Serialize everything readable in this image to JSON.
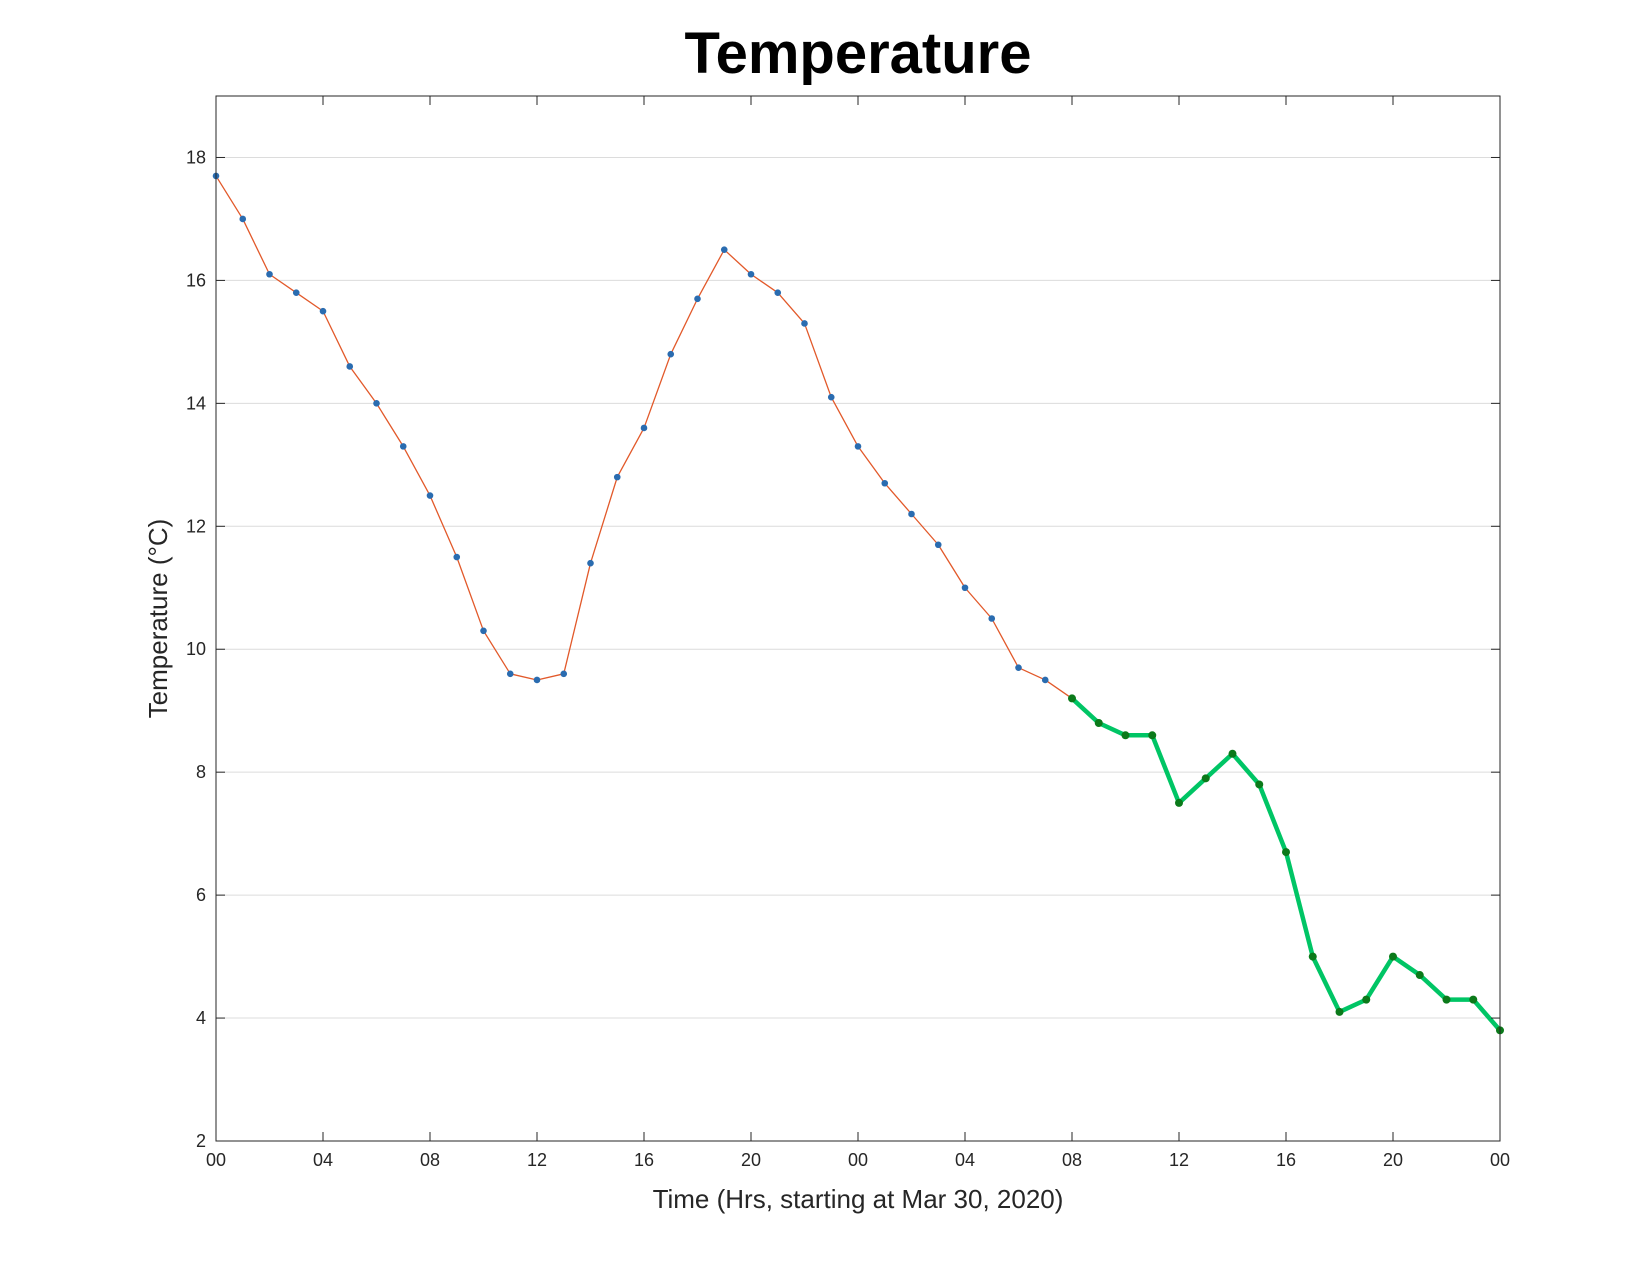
{
  "chart_data": {
    "type": "line",
    "title": "Temperature",
    "xlabel": "Time (Hrs, starting at Mar 30, 2020)",
    "ylabel": "Temperature (°C)",
    "ylim": [
      2,
      19
    ],
    "xlim": [
      0,
      48
    ],
    "grid": "horizontal",
    "x_tick_values": [
      0,
      4,
      8,
      12,
      16,
      20,
      24,
      28,
      32,
      36,
      40,
      44,
      48
    ],
    "x_tick_labels": [
      "00",
      "04",
      "08",
      "12",
      "16",
      "20",
      "00",
      "04",
      "08",
      "12",
      "16",
      "20",
      "00"
    ],
    "y_ticks": [
      2,
      4,
      6,
      8,
      10,
      12,
      14,
      16,
      18
    ],
    "series": [
      {
        "role": "observed",
        "line_color": "#e2592a",
        "marker_color": "#2a6cb0",
        "x": [
          0,
          1,
          2,
          3,
          4,
          5,
          6,
          7,
          8,
          9,
          10,
          11,
          12,
          13,
          14,
          15,
          16,
          17,
          18,
          19,
          20,
          21,
          22,
          23,
          24,
          25,
          26,
          27,
          28,
          29,
          30,
          31,
          32
        ],
        "values": [
          17.7,
          17.0,
          16.1,
          15.8,
          15.5,
          14.6,
          14.0,
          13.3,
          12.5,
          11.5,
          10.3,
          9.6,
          9.5,
          9.6,
          11.4,
          12.8,
          13.6,
          14.8,
          15.7,
          16.5,
          16.1,
          15.8,
          15.3,
          14.1,
          13.3,
          12.7,
          12.2,
          11.7,
          11.0,
          10.5,
          9.7,
          9.5,
          9.2
        ]
      },
      {
        "role": "forecast",
        "line_color": "#00c565",
        "marker_color": "#0b7a1a",
        "x": [
          32,
          33,
          34,
          35,
          36,
          37,
          38,
          39,
          40,
          41,
          42,
          43,
          44,
          45,
          46,
          47,
          48
        ],
        "values": [
          9.2,
          8.8,
          8.6,
          8.6,
          7.5,
          7.9,
          8.3,
          7.8,
          6.7,
          5.0,
          4.1,
          4.3,
          5.0,
          4.7,
          4.3,
          4.3,
          3.8
        ]
      }
    ]
  }
}
